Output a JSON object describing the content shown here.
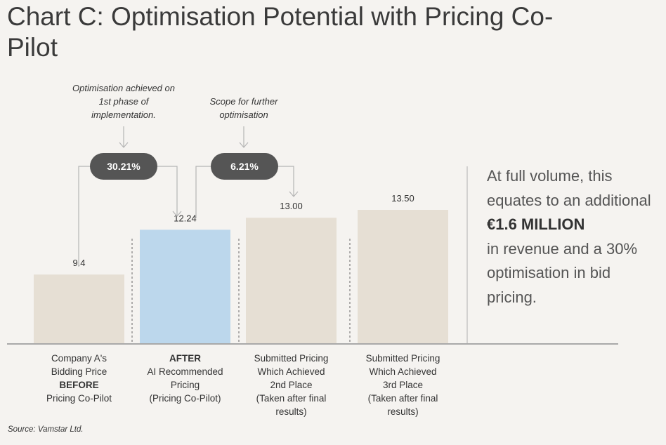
{
  "title": "Chart C: Optimisation Potential with Pricing Co-Pilot",
  "annotations": {
    "first_phase": "Optimisation achieved on 1st phase of implementation.",
    "further": "Scope for further optimisation",
    "pill_1": "30.21%",
    "pill_2": "6.21%"
  },
  "side_text": {
    "line1": "At full volume, this equates to an additional",
    "highlight": "€1.6 MILLION",
    "line2": "in revenue and a 30% optimisation in bid pricing."
  },
  "source": "Source: Vamstar Ltd.",
  "chart_data": {
    "type": "bar",
    "title": "Chart C: Optimisation Potential with Pricing Co-Pilot",
    "categories": [
      {
        "lines": [
          "Company A's",
          "Bidding Price",
          "BEFORE",
          "Pricing Co-Pilot"
        ],
        "bold": [
          2
        ]
      },
      {
        "lines": [
          "AFTER",
          "AI Recommended",
          "Pricing",
          "(Pricing Co-Pilot)"
        ],
        "bold": [
          0
        ]
      },
      {
        "lines": [
          "Submitted Pricing",
          "Which Achieved",
          "2nd Place",
          "(Taken after final",
          "results)"
        ],
        "bold": []
      },
      {
        "lines": [
          "Submitted Pricing",
          "Which Achieved",
          "3rd Place",
          "(Taken after final",
          "results)"
        ],
        "bold": []
      }
    ],
    "values": [
      9.4,
      12.24,
      13.0,
      13.5
    ],
    "labels": [
      "9.4",
      "12.24",
      "13.00",
      "13.50"
    ],
    "colors": [
      "#e6dfd4",
      "#bcd7ec",
      "#e6dfd4",
      "#e6dfd4"
    ],
    "ylim": [
      5,
      13.5
    ],
    "grid": false,
    "xlabel": "",
    "ylabel": ""
  },
  "colors": {
    "pill": "#555555",
    "line": "#b5b5b5",
    "axis": "#a9a9a9"
  }
}
